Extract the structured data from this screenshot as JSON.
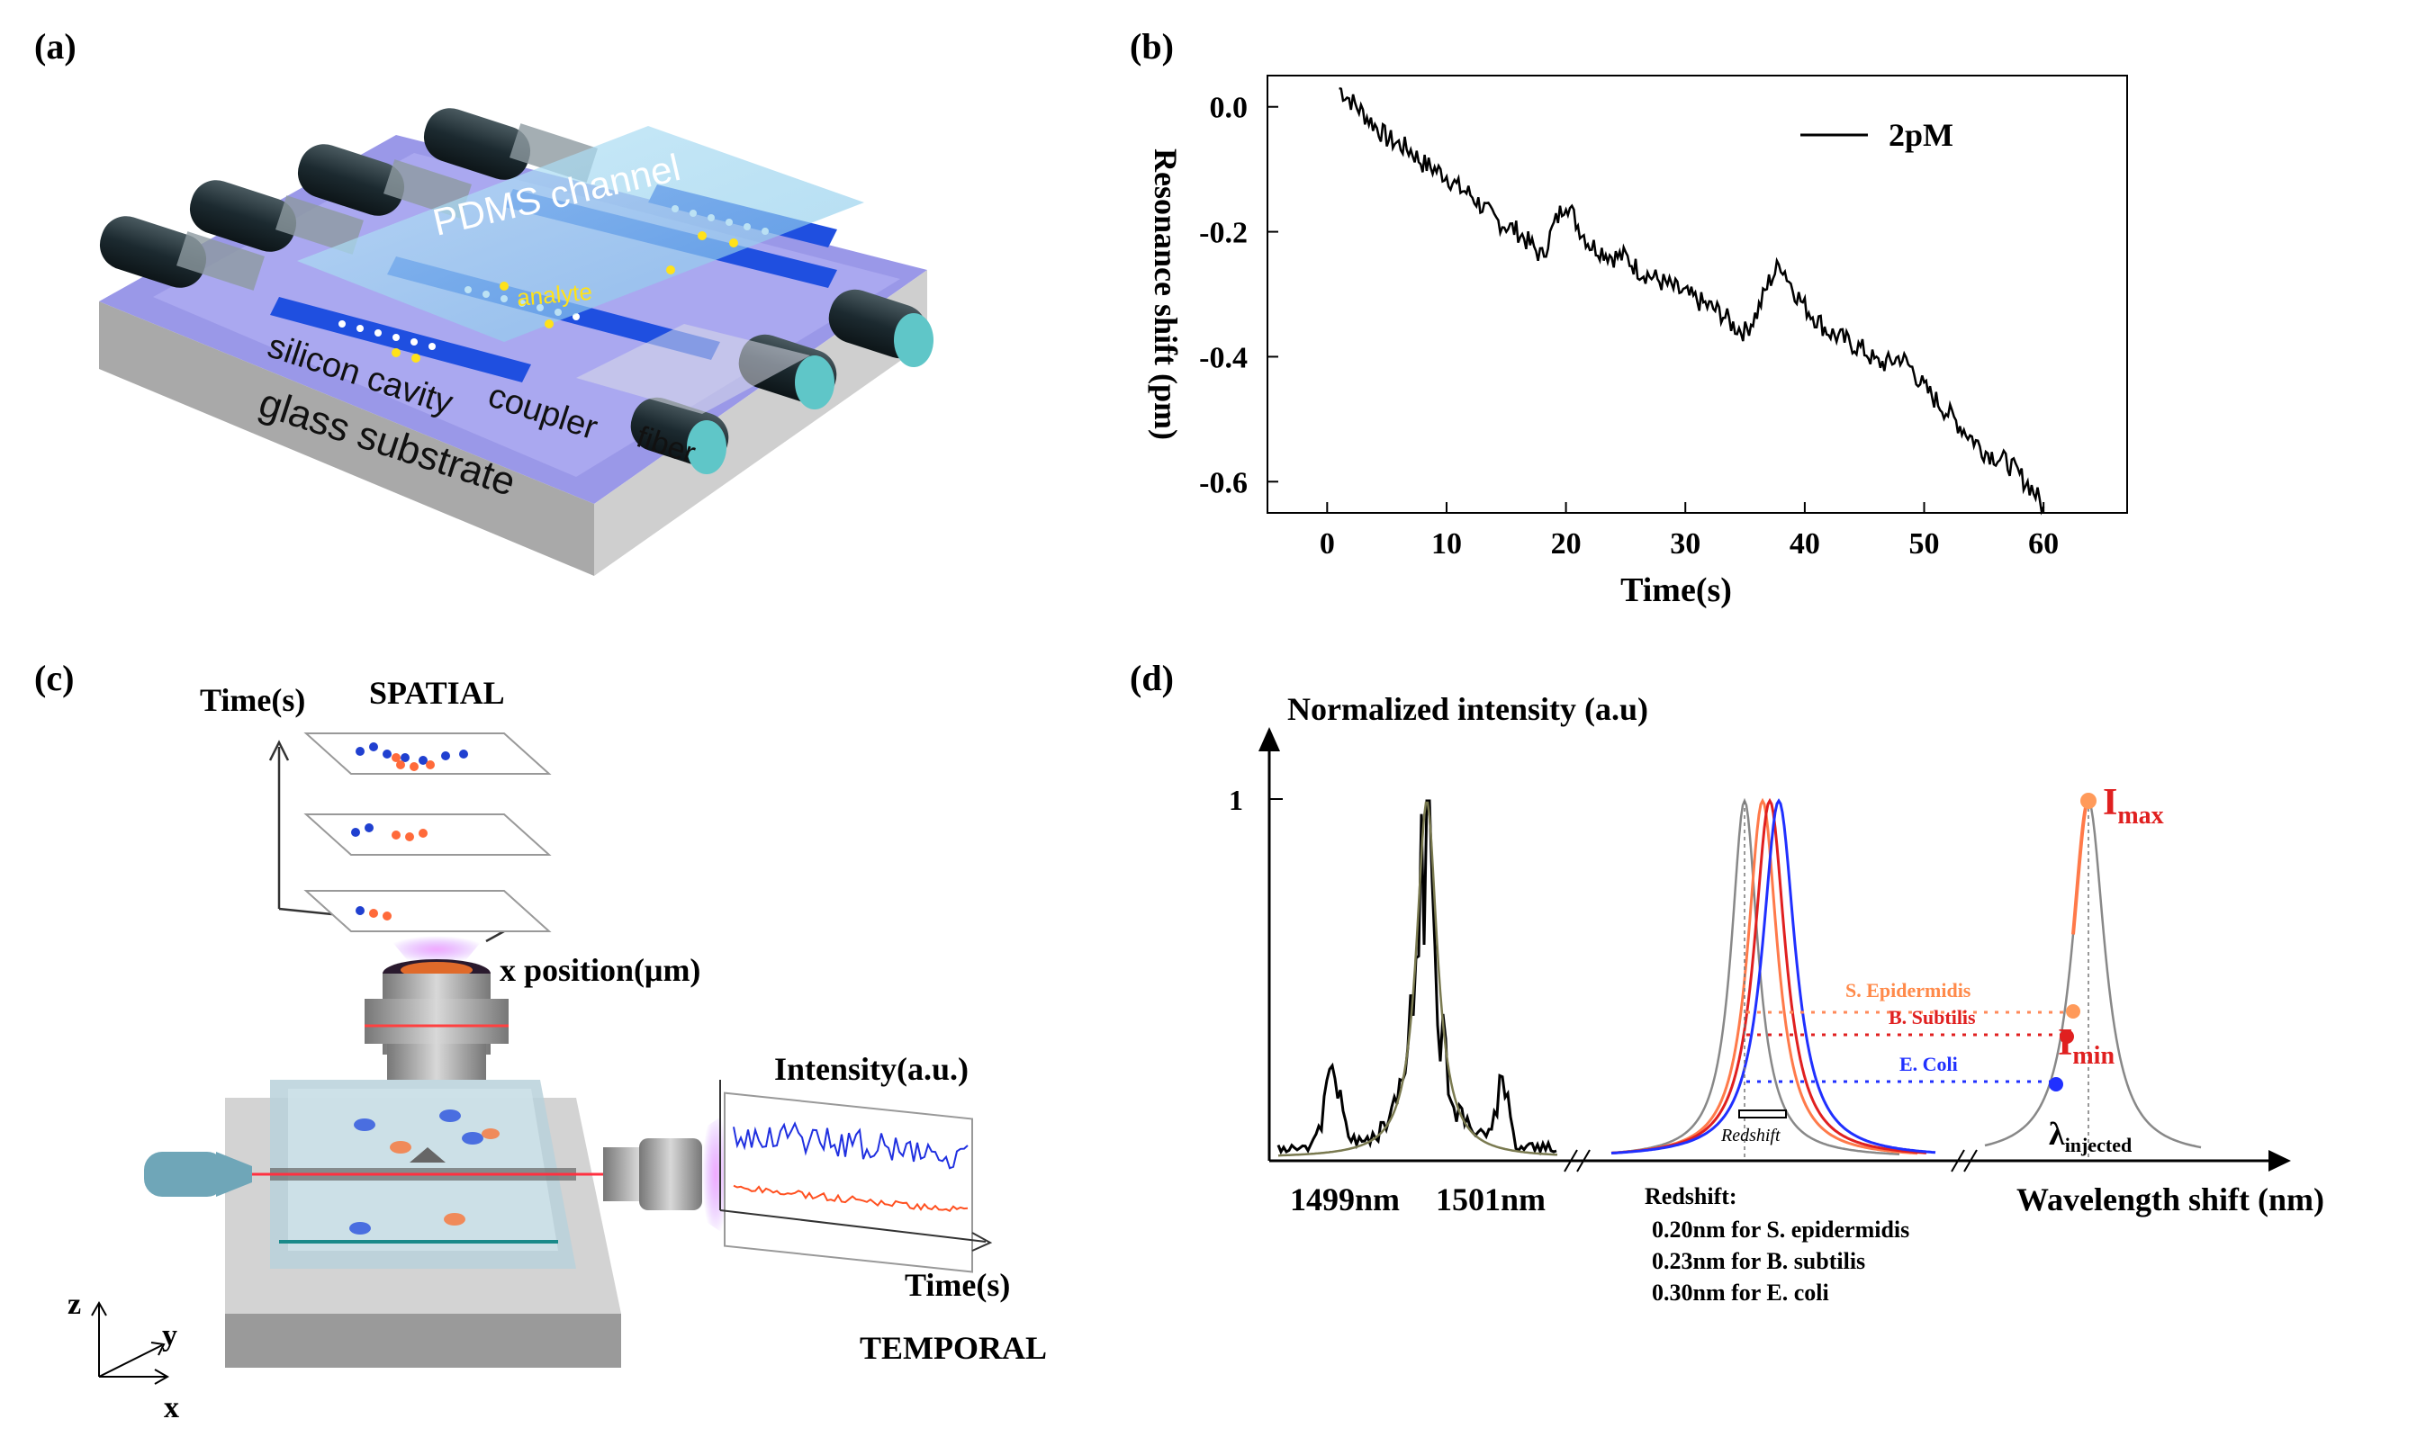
{
  "panels": {
    "a": {
      "label": "(a)",
      "labels": {
        "pdms": "PDMS channel",
        "analyte": "analyte",
        "silicon": "silicon cavity",
        "coupler": "coupler",
        "fiber": "fiber",
        "glass": "glass substrate"
      }
    },
    "b": {
      "label": "(b)"
    },
    "c": {
      "label": "(c)",
      "labels": {
        "spatial": "SPATIAL",
        "time_top": "Time(s)",
        "xpos": "x position(μm)",
        "intensity": "Intensity(a.u.)",
        "time_bottom": "Time(s)",
        "temporal": "TEMPORAL",
        "axis_z": "z",
        "axis_y": "y",
        "axis_x": "x"
      }
    },
    "d": {
      "label": "(d)",
      "labels": {
        "ylabel": "Normalized intensity (a.u)",
        "one": "1",
        "nm1499": "1499nm",
        "nm1501": "1501nm",
        "xlabel": "Wavelength shift (nm)",
        "redshift_small": "Redshift",
        "s_epi": "S. Epidermidis",
        "b_sub": "B. Subtilis",
        "e_coli": "E. Coli",
        "imax_main": "I",
        "imax_sub": "max",
        "imin_main": "I",
        "imin_sub": "min",
        "lambda_main": "λ",
        "lambda_sub": "injected",
        "redshift_title": "Redshift:",
        "redshift_lines": [
          "0.20nm for  S. epidermidis",
          "0.23nm for B. subtilis",
          "0.30nm for E. coli"
        ]
      }
    }
  },
  "chart_data": {
    "type": "line",
    "title": "",
    "xlabel": "Time(s)",
    "ylabel": "Resonance shift (pm)",
    "xlim": [
      -5,
      67
    ],
    "ylim": [
      -0.65,
      0.05
    ],
    "xticks": [
      0,
      10,
      20,
      30,
      40,
      50,
      60
    ],
    "yticks": [
      0.0,
      -0.2,
      -0.4,
      -0.6
    ],
    "legend_position": "top-right",
    "grid": false,
    "series": [
      {
        "name": "2pM",
        "color": "#000000",
        "x": [
          1,
          2,
          3,
          4,
          5,
          6,
          7,
          8,
          9,
          10,
          11,
          12,
          13,
          14,
          15,
          16,
          17,
          18,
          19,
          20,
          21,
          22,
          23,
          24,
          25,
          26,
          27,
          28,
          29,
          30,
          31,
          32,
          33,
          34,
          35,
          36,
          37,
          38,
          39,
          40,
          41,
          42,
          43,
          44,
          45,
          46,
          47,
          48,
          49,
          50,
          51,
          52,
          53,
          54,
          55,
          56,
          57,
          58,
          59,
          60
        ],
        "y": [
          0.03,
          0.01,
          -0.01,
          -0.03,
          -0.05,
          -0.06,
          -0.07,
          -0.09,
          -0.1,
          -0.11,
          -0.13,
          -0.14,
          -0.16,
          -0.18,
          -0.19,
          -0.2,
          -0.22,
          -0.24,
          -0.19,
          -0.15,
          -0.19,
          -0.22,
          -0.23,
          -0.24,
          -0.24,
          -0.26,
          -0.27,
          -0.28,
          -0.29,
          -0.3,
          -0.31,
          -0.32,
          -0.33,
          -0.35,
          -0.36,
          -0.33,
          -0.28,
          -0.25,
          -0.29,
          -0.32,
          -0.34,
          -0.36,
          -0.37,
          -0.38,
          -0.39,
          -0.41,
          -0.41,
          -0.4,
          -0.42,
          -0.45,
          -0.47,
          -0.49,
          -0.51,
          -0.53,
          -0.55,
          -0.56,
          -0.57,
          -0.59,
          -0.61,
          -0.64
        ]
      }
    ]
  }
}
